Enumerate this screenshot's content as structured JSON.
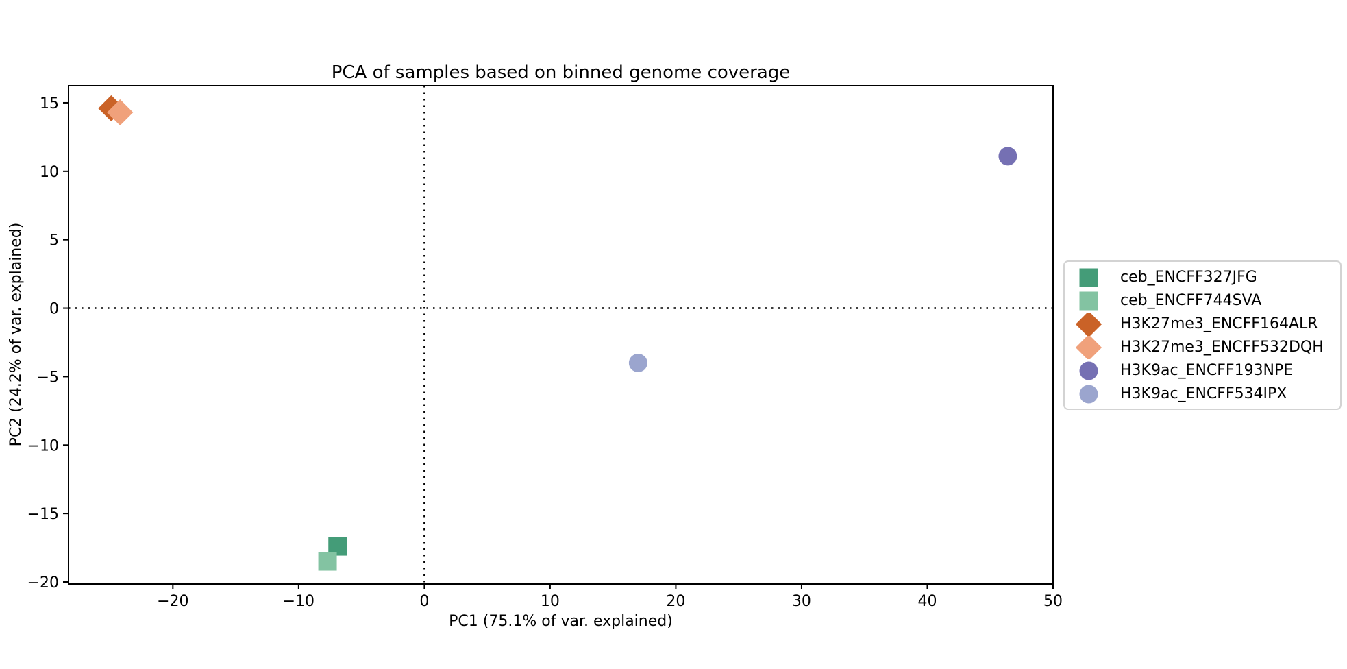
{
  "figure": {
    "background_color": "#ffffff",
    "text_color": "#000000",
    "spine_color": "#000000",
    "legend_border_color": "#d3d3d3"
  },
  "chart_data": {
    "type": "scatter",
    "title": "PCA of samples based on binned genome coverage",
    "xlabel": "PC1 (75.1% of var. explained)",
    "ylabel": "PC2 (24.2% of var. explained)",
    "xlim": [
      -28.3,
      50.0
    ],
    "ylim": [
      -20.15,
      16.25
    ],
    "xticks": [
      -20,
      -10,
      0,
      10,
      20,
      30,
      40,
      50
    ],
    "yticks": [
      15,
      10,
      5,
      0,
      -5,
      -10,
      -15,
      -20
    ],
    "grid": false,
    "zero_lines": {
      "x": 0,
      "y": 0,
      "style": "dotted",
      "color": "#000000"
    },
    "legend_position": "outside-right",
    "marker_size_px": 27,
    "series": [
      {
        "name": "ceb_ENCFF327JFG",
        "marker": "square",
        "color": "#449c78",
        "points": [
          [
            -6.9,
            -17.4
          ]
        ]
      },
      {
        "name": "ceb_ENCFF744SVA",
        "marker": "square",
        "color": "#83c3a2",
        "points": [
          [
            -7.7,
            -18.5
          ]
        ]
      },
      {
        "name": "H3K27me3_ENCFF164ALR",
        "marker": "diamond",
        "color": "#ca6227",
        "points": [
          [
            -24.9,
            14.6
          ]
        ]
      },
      {
        "name": "H3K27me3_ENCFF532DQH",
        "marker": "diamond",
        "color": "#f0a17b",
        "points": [
          [
            -24.2,
            14.3
          ]
        ]
      },
      {
        "name": "H3K9ac_ENCFF193NPE",
        "marker": "circle",
        "color": "#7570b3",
        "points": [
          [
            46.4,
            11.1
          ]
        ]
      },
      {
        "name": "H3K9ac_ENCFF534IPX",
        "marker": "circle",
        "color": "#9ba5ce",
        "points": [
          [
            17.0,
            -4.0
          ]
        ]
      }
    ]
  }
}
